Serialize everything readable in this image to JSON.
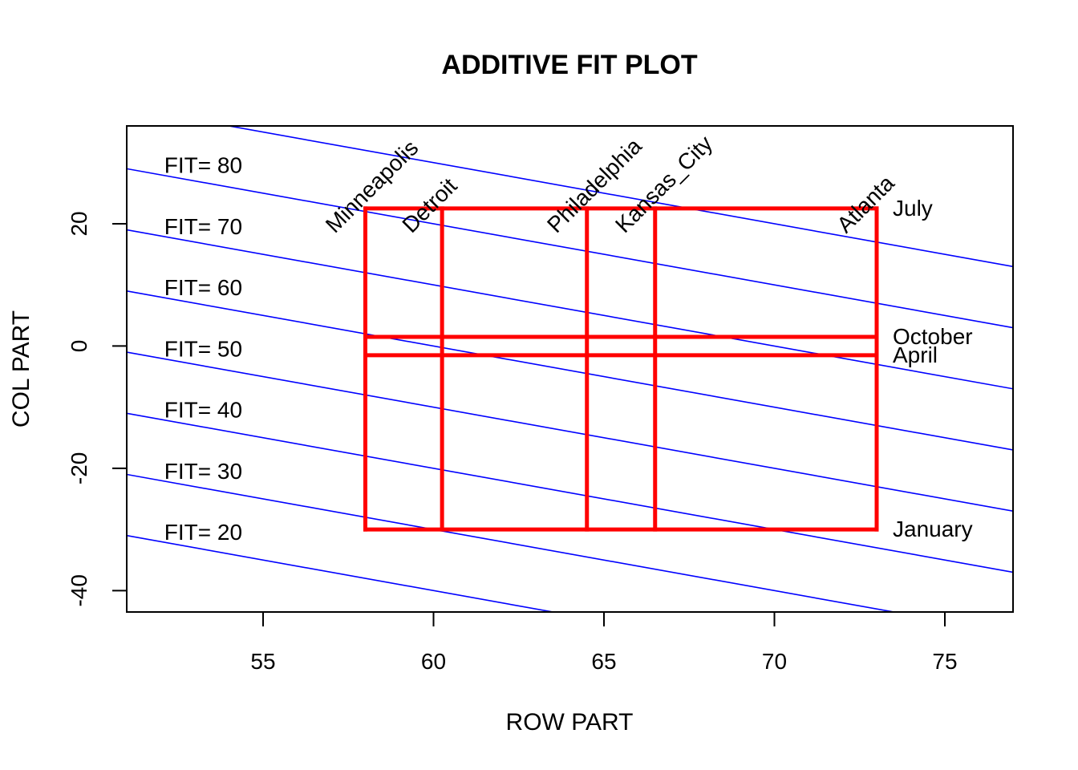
{
  "chart_data": {
    "type": "line",
    "title": "ADDITIVE FIT PLOT",
    "xlabel": "ROW PART",
    "ylabel": "COL PART",
    "xlim": [
      51,
      77
    ],
    "ylim": [
      -43.5,
      36
    ],
    "xticks": [
      55,
      60,
      65,
      70,
      75
    ],
    "yticks": [
      -40,
      -20,
      0,
      20
    ],
    "grid": false,
    "fit_lines": {
      "color": "#0000ff",
      "values": [
        20,
        30,
        40,
        50,
        60,
        70,
        80,
        90
      ],
      "label_prefix": "FIT= ",
      "label_x": 52.1
    },
    "rows": [
      {
        "name": "Minneapolis",
        "value": 58.0
      },
      {
        "name": "Detroit",
        "value": 60.25
      },
      {
        "name": "Philadelphia",
        "value": 64.5
      },
      {
        "name": "Kansas_City",
        "value": 66.5
      },
      {
        "name": "Atlanta",
        "value": 73.0
      }
    ],
    "cols": [
      {
        "name": "January",
        "value": -30.0
      },
      {
        "name": "April",
        "value": -1.5
      },
      {
        "name": "October",
        "value": 1.5
      },
      {
        "name": "July",
        "value": 22.5
      }
    ],
    "grid_color": "#ff0000"
  }
}
